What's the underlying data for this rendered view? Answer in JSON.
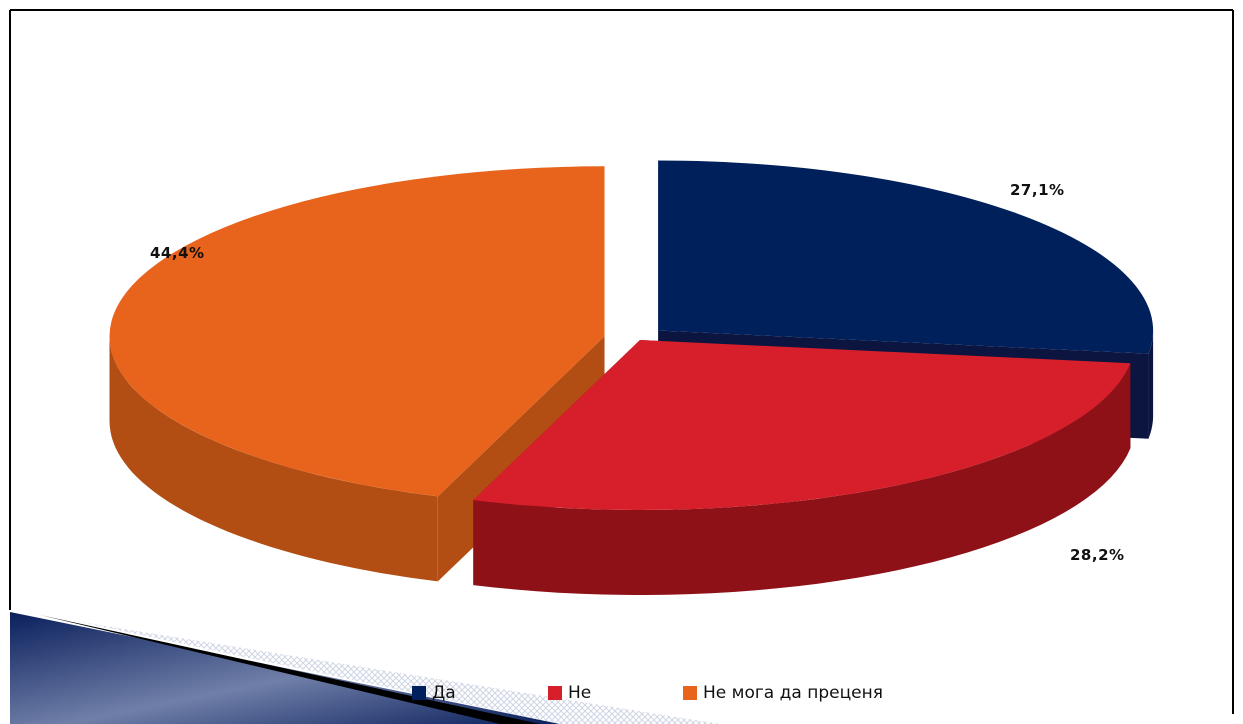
{
  "chart_data": {
    "type": "pie",
    "title": "",
    "categories": [
      "Да",
      "Не",
      "Не мога да преценя"
    ],
    "values": [
      27.1,
      28.2,
      44.4
    ],
    "labels": [
      "27,1%",
      "28,2%",
      "44,4%"
    ],
    "colors": [
      "#00205B",
      "#D61F2A",
      "#E8641D"
    ],
    "side_colors": [
      "#0B1540",
      "#8E1118",
      "#B24E13"
    ],
    "style": "3d-exploded",
    "legend_position": "bottom"
  }
}
